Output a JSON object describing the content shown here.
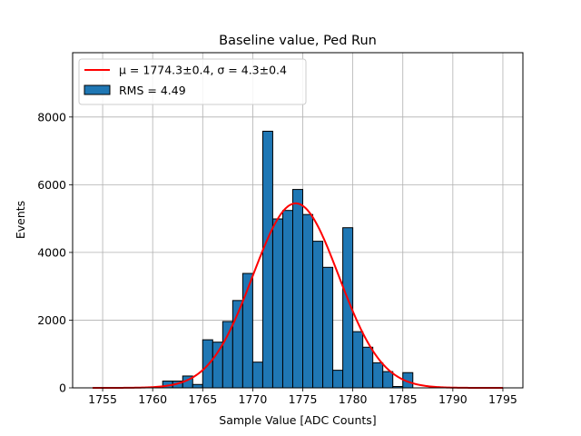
{
  "chart_data": {
    "type": "bar",
    "title": "Baseline value, Ped Run",
    "xlabel": "Sample Value [ADC Counts]",
    "ylabel": "Events",
    "xlim": [
      1752,
      1797
    ],
    "ylim": [
      0,
      9900
    ],
    "grid": true,
    "legend_placement": "top-left",
    "x_ticks": [
      1755,
      1760,
      1765,
      1770,
      1775,
      1780,
      1785,
      1790,
      1795
    ],
    "y_ticks": [
      0,
      2000,
      4000,
      6000,
      8000
    ],
    "bin_width": 1,
    "bin_edges_start": 1761,
    "histogram_values": [
      200,
      200,
      350,
      100,
      1420,
      1350,
      1960,
      2580,
      3380,
      760,
      7580,
      4990,
      5240,
      5860,
      5120,
      4330,
      3560,
      520,
      4730,
      1660,
      1200,
      740,
      480,
      40,
      450
    ],
    "bar_color": "#1f77b4",
    "fit": {
      "mu": 1774.3,
      "sigma": 4.3,
      "amplitude": 5450,
      "x_range": [
        1754,
        1795
      ],
      "color": "#ff0000"
    },
    "legend": [
      {
        "label": "μ = 1774.3±0.4, σ = 4.3±0.4",
        "kind": "line",
        "color": "#ff0000"
      },
      {
        "label": "RMS = 4.49",
        "kind": "patch",
        "color": "#1f77b4"
      }
    ]
  }
}
